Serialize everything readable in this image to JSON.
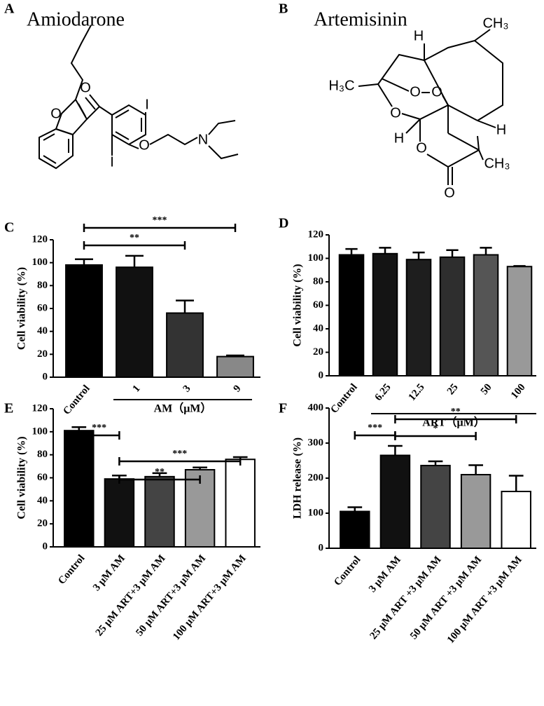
{
  "panels": [
    "A",
    "B",
    "C",
    "D",
    "E",
    "F"
  ],
  "structures": [
    {
      "name": "Amiodarone",
      "atoms": [
        "O",
        "O",
        "I",
        "I",
        "O",
        "N"
      ]
    },
    {
      "name": "Artemisinin",
      "atoms": [
        "H",
        "CH₃",
        "H₃C",
        "O",
        "O",
        "O",
        "H",
        "O",
        "H",
        "CH₃",
        "O"
      ]
    }
  ],
  "chart_data": [
    {
      "type": "bar",
      "ylabel": "Cell viability (%)",
      "categories": [
        "Control",
        "1",
        "3",
        "9"
      ],
      "values": [
        98,
        96,
        56,
        18
      ],
      "errors": [
        5,
        10,
        11,
        1
      ],
      "colors": [
        "#000000",
        "#111111",
        "#333333",
        "#888888"
      ],
      "ylim": [
        0,
        120
      ],
      "yticks": [
        0,
        20,
        40,
        60,
        80,
        100,
        120
      ],
      "group_label": "AM（μM）",
      "brackets": [
        {
          "between": [
            "Control",
            "9"
          ],
          "label": "***"
        },
        {
          "between": [
            "Control",
            "3"
          ],
          "label": "**"
        }
      ]
    },
    {
      "type": "bar",
      "ylabel": "Cell viability (%)",
      "categories": [
        "Control",
        "6.25",
        "12.5",
        "25",
        "50",
        "100"
      ],
      "values": [
        103,
        104,
        99,
        101,
        103,
        93
      ],
      "errors": [
        5,
        5,
        6,
        6,
        6,
        0.5
      ],
      "colors": [
        "#000000",
        "#141414",
        "#1e1e1e",
        "#2e2e2e",
        "#555555",
        "#999999"
      ],
      "ylim": [
        0,
        120
      ],
      "yticks": [
        0,
        20,
        40,
        60,
        80,
        100,
        120
      ],
      "group_label": "ART（μM）"
    },
    {
      "type": "bar",
      "ylabel": "Cell viability (%)",
      "categories": [
        "Control",
        "3 μM AM",
        "25 μM ART+3 μM AM",
        "50 μM ART+3 μM AM",
        "100 μM ART+3 μM AM"
      ],
      "values": [
        101,
        59,
        61,
        67,
        76
      ],
      "errors": [
        3,
        3,
        3,
        2,
        2
      ],
      "colors": [
        "#000000",
        "#111111",
        "#444444",
        "#999999",
        "#ffffff"
      ],
      "ylim": [
        0,
        120
      ],
      "yticks": [
        0,
        20,
        40,
        60,
        80,
        100,
        120
      ],
      "brackets": [
        {
          "between": [
            "Control",
            "3 μM AM"
          ],
          "label": "***"
        },
        {
          "between": [
            "3 μM AM",
            "100 μM ART+3 μM AM"
          ],
          "label": "***"
        },
        {
          "between": [
            "3 μM AM",
            "50 μM ART+3 μM AM"
          ],
          "label": "**"
        }
      ]
    },
    {
      "type": "bar",
      "ylabel": "LDH release (%)",
      "categories": [
        "Control",
        "3 μM AM",
        "25 μM ART +3 μM AM",
        "50 μM ART +3 μM AM",
        "100 μM ART +3 μM AM"
      ],
      "values": [
        105,
        265,
        236,
        210,
        162
      ],
      "errors": [
        12,
        27,
        12,
        27,
        45
      ],
      "colors": [
        "#000000",
        "#111111",
        "#444444",
        "#999999",
        "#ffffff"
      ],
      "ylim": [
        0,
        400
      ],
      "yticks": [
        0,
        100,
        200,
        300,
        400
      ],
      "brackets": [
        {
          "between": [
            "3 μM AM",
            "100 μM ART +3 μM AM"
          ],
          "label": "**"
        },
        {
          "between": [
            "Control",
            "3 μM AM"
          ],
          "label": "***"
        },
        {
          "between": [
            "3 μM AM",
            "50 μM ART +3 μM AM"
          ],
          "label": "*"
        }
      ]
    }
  ]
}
